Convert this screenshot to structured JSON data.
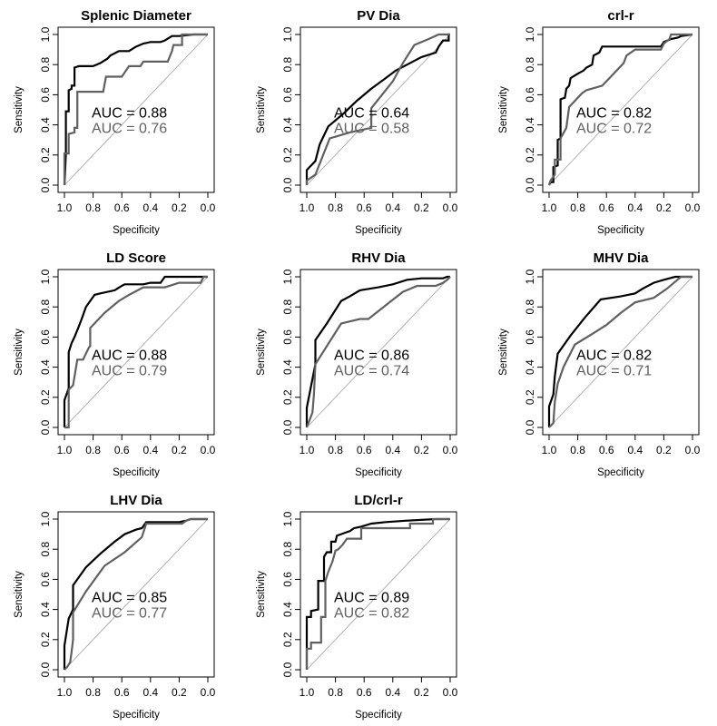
{
  "chart_data": [
    {
      "type": "line",
      "title": "Splenic Diameter",
      "xlabel": "Specificity",
      "ylabel": "Sensitivity",
      "xlim": [
        1.0,
        0.0
      ],
      "ylim": [
        0.0,
        1.0
      ],
      "xticks": [
        "1.0",
        "0.8",
        "0.6",
        "0.4",
        "0.2",
        "0.0"
      ],
      "yticks": [
        "0.0",
        "0.2",
        "0.4",
        "0.6",
        "0.8",
        "1.0"
      ],
      "diagonal": true,
      "series": [
        {
          "name": "curve-black",
          "color": "#000000",
          "auc_label": "AUC =  0.88",
          "x": [
            1.0,
            0.99,
            0.99,
            0.97,
            0.97,
            0.95,
            0.95,
            0.93,
            0.93,
            0.9,
            0.8,
            0.75,
            0.7,
            0.68,
            0.62,
            0.55,
            0.5,
            0.45,
            0.4,
            0.33,
            0.3,
            0.25,
            0.2,
            0.1,
            0.0
          ],
          "y": [
            0.0,
            0.21,
            0.49,
            0.49,
            0.63,
            0.64,
            0.66,
            0.66,
            0.78,
            0.79,
            0.79,
            0.81,
            0.84,
            0.86,
            0.89,
            0.89,
            0.92,
            0.94,
            0.95,
            0.95,
            0.96,
            0.99,
            0.99,
            1.0,
            1.0
          ]
        },
        {
          "name": "curve-gray",
          "color": "#606060",
          "auc_label": "AUC =  0.76",
          "x": [
            1.0,
            1.0,
            0.97,
            0.97,
            0.93,
            0.93,
            0.91,
            0.91,
            0.73,
            0.71,
            0.6,
            0.55,
            0.47,
            0.45,
            0.28,
            0.25,
            0.24,
            0.18,
            0.18,
            0.0
          ],
          "y": [
            0.0,
            0.21,
            0.21,
            0.34,
            0.35,
            0.38,
            0.38,
            0.62,
            0.62,
            0.72,
            0.72,
            0.79,
            0.79,
            0.82,
            0.82,
            0.89,
            0.93,
            0.93,
            1.0,
            1.0
          ]
        }
      ]
    },
    {
      "type": "line",
      "title": "PV Dia",
      "xlabel": "Specificity",
      "ylabel": "Sensitivity",
      "xlim": [
        1.0,
        0.0
      ],
      "ylim": [
        0.0,
        1.0
      ],
      "xticks": [
        "1.0",
        "0.8",
        "0.6",
        "0.4",
        "0.2",
        "0.0"
      ],
      "yticks": [
        "0.0",
        "0.2",
        "0.4",
        "0.6",
        "0.8",
        "1.0"
      ],
      "diagonal": true,
      "series": [
        {
          "name": "curve-black",
          "color": "#000000",
          "auc_label": "AUC =  0.64",
          "x": [
            1.0,
            1.0,
            0.94,
            0.91,
            0.89,
            0.85,
            0.75,
            0.65,
            0.55,
            0.45,
            0.38,
            0.3,
            0.2,
            0.1,
            0.08,
            0.05,
            0.01,
            0.01,
            0.0
          ],
          "y": [
            0.0,
            0.1,
            0.16,
            0.27,
            0.31,
            0.39,
            0.47,
            0.56,
            0.64,
            0.71,
            0.76,
            0.8,
            0.85,
            0.88,
            0.92,
            0.96,
            0.96,
            1.0,
            1.0
          ]
        },
        {
          "name": "curve-gray",
          "color": "#606060",
          "auc_label": "AUC =  0.58",
          "x": [
            1.0,
            1.0,
            0.94,
            0.84,
            0.7,
            0.55,
            0.55,
            0.4,
            0.33,
            0.25,
            0.15,
            0.08,
            0.03,
            0.0
          ],
          "y": [
            0.0,
            0.03,
            0.07,
            0.31,
            0.35,
            0.38,
            0.51,
            0.69,
            0.81,
            0.93,
            0.97,
            1.0,
            1.0,
            1.0
          ]
        }
      ]
    },
    {
      "type": "line",
      "title": "crl-r",
      "xlabel": "Specificity",
      "ylabel": "Sensitivity",
      "xlim": [
        1.0,
        0.0
      ],
      "ylim": [
        0.0,
        1.0
      ],
      "xticks": [
        "1.0",
        "0.8",
        "0.6",
        "0.4",
        "0.2",
        "0.0"
      ],
      "yticks": [
        "0.0",
        "0.2",
        "0.4",
        "0.6",
        "0.8",
        "1.0"
      ],
      "diagonal": true,
      "series": [
        {
          "name": "curve-black",
          "color": "#000000",
          "auc_label": "AUC =  0.82",
          "x": [
            1.0,
            0.99,
            0.97,
            0.97,
            0.94,
            0.94,
            0.92,
            0.92,
            0.89,
            0.88,
            0.86,
            0.85,
            0.8,
            0.76,
            0.74,
            0.7,
            0.69,
            0.65,
            0.63,
            0.22,
            0.2,
            0.15,
            0.1,
            0.08,
            0.0
          ],
          "y": [
            0.0,
            0.02,
            0.02,
            0.12,
            0.13,
            0.3,
            0.31,
            0.57,
            0.58,
            0.64,
            0.66,
            0.71,
            0.74,
            0.76,
            0.78,
            0.8,
            0.86,
            0.88,
            0.92,
            0.92,
            0.95,
            0.97,
            0.98,
            0.99,
            1.0
          ]
        },
        {
          "name": "curve-gray",
          "color": "#606060",
          "auc_label": "AUC =  0.72",
          "x": [
            1.0,
            0.99,
            0.96,
            0.96,
            0.92,
            0.92,
            0.88,
            0.86,
            0.83,
            0.77,
            0.74,
            0.63,
            0.6,
            0.55,
            0.52,
            0.48,
            0.46,
            0.4,
            0.22,
            0.2,
            0.16,
            0.15,
            0.0
          ],
          "y": [
            0.0,
            0.03,
            0.07,
            0.17,
            0.17,
            0.31,
            0.38,
            0.52,
            0.55,
            0.61,
            0.63,
            0.66,
            0.69,
            0.74,
            0.77,
            0.81,
            0.86,
            0.9,
            0.9,
            0.94,
            0.97,
            1.0,
            1.0
          ]
        }
      ]
    },
    {
      "type": "line",
      "title": "LD Score",
      "xlabel": "Specificity",
      "ylabel": "Sensitivity",
      "xlim": [
        1.0,
        0.0
      ],
      "ylim": [
        0.0,
        1.0
      ],
      "xticks": [
        "1.0",
        "0.8",
        "0.6",
        "0.4",
        "0.2",
        "0.0"
      ],
      "yticks": [
        "0.0",
        "0.2",
        "0.4",
        "0.6",
        "0.8",
        "1.0"
      ],
      "diagonal": true,
      "series": [
        {
          "name": "curve-black",
          "color": "#000000",
          "auc_label": "AUC =  0.88",
          "x": [
            1.0,
            1.0,
            0.97,
            0.97,
            0.95,
            0.93,
            0.9,
            0.88,
            0.85,
            0.82,
            0.79,
            0.75,
            0.65,
            0.6,
            0.58,
            0.45,
            0.4,
            0.33,
            0.3,
            0.0
          ],
          "y": [
            0.0,
            0.18,
            0.26,
            0.5,
            0.56,
            0.6,
            0.67,
            0.72,
            0.8,
            0.84,
            0.88,
            0.89,
            0.91,
            0.94,
            0.95,
            0.95,
            0.96,
            0.96,
            1.0,
            1.0
          ]
        },
        {
          "name": "curve-gray",
          "color": "#606060",
          "auc_label": "AUC =  0.79",
          "x": [
            1.0,
            0.97,
            0.97,
            0.94,
            0.91,
            0.87,
            0.83,
            0.82,
            0.82,
            0.72,
            0.62,
            0.55,
            0.45,
            0.3,
            0.2,
            0.05,
            0.03,
            0.0
          ],
          "y": [
            0.0,
            0.0,
            0.25,
            0.28,
            0.45,
            0.45,
            0.53,
            0.54,
            0.66,
            0.76,
            0.84,
            0.88,
            0.93,
            0.93,
            0.96,
            0.96,
            1.0,
            1.0
          ]
        }
      ]
    },
    {
      "type": "line",
      "title": "RHV Dia",
      "xlabel": "Specificity",
      "ylabel": "Sensitivity",
      "xlim": [
        1.0,
        0.0
      ],
      "ylim": [
        0.0,
        1.0
      ],
      "xticks": [
        "1.0",
        "0.8",
        "0.6",
        "0.4",
        "0.2",
        "0.0"
      ],
      "yticks": [
        "0.0",
        "0.2",
        "0.4",
        "0.6",
        "0.8",
        "1.0"
      ],
      "diagonal": true,
      "series": [
        {
          "name": "curve-black",
          "color": "#000000",
          "auc_label": "AUC =  0.86",
          "x": [
            1.0,
            1.0,
            0.94,
            0.94,
            0.86,
            0.76,
            0.7,
            0.63,
            0.5,
            0.4,
            0.3,
            0.2,
            0.05,
            0.02,
            0.0
          ],
          "y": [
            0.0,
            0.13,
            0.42,
            0.58,
            0.69,
            0.84,
            0.87,
            0.91,
            0.93,
            0.95,
            0.98,
            0.99,
            0.99,
            1.0,
            1.0
          ]
        },
        {
          "name": "curve-gray",
          "color": "#606060",
          "auc_label": "AUC =  0.74",
          "x": [
            1.0,
            0.96,
            0.95,
            0.94,
            0.76,
            0.63,
            0.57,
            0.45,
            0.33,
            0.23,
            0.1,
            0.05,
            0.02,
            0.0
          ],
          "y": [
            0.0,
            0.1,
            0.22,
            0.42,
            0.69,
            0.72,
            0.72,
            0.81,
            0.9,
            0.94,
            0.94,
            0.96,
            0.98,
            1.0
          ]
        }
      ]
    },
    {
      "type": "line",
      "title": "MHV Dia",
      "xlabel": "Specificity",
      "ylabel": "Sensitivity",
      "xlim": [
        1.0,
        0.0
      ],
      "ylim": [
        0.0,
        1.0
      ],
      "xticks": [
        "1.0",
        "0.8",
        "0.6",
        "0.4",
        "0.2",
        "0.0"
      ],
      "yticks": [
        "0.0",
        "0.2",
        "0.4",
        "0.6",
        "0.8",
        "1.0"
      ],
      "diagonal": true,
      "series": [
        {
          "name": "curve-black",
          "color": "#000000",
          "auc_label": "AUC =  0.82",
          "x": [
            1.0,
            1.0,
            0.97,
            0.96,
            0.94,
            0.85,
            0.75,
            0.64,
            0.5,
            0.4,
            0.35,
            0.27,
            0.2,
            0.12,
            0.08,
            0.0
          ],
          "y": [
            0.0,
            0.14,
            0.22,
            0.34,
            0.49,
            0.61,
            0.73,
            0.85,
            0.87,
            0.89,
            0.92,
            0.96,
            0.98,
            1.0,
            1.0,
            1.0
          ]
        },
        {
          "name": "curve-gray",
          "color": "#606060",
          "auc_label": "AUC =  0.71",
          "x": [
            1.0,
            0.97,
            0.96,
            0.94,
            0.9,
            0.82,
            0.7,
            0.6,
            0.5,
            0.4,
            0.27,
            0.18,
            0.08,
            0.0
          ],
          "y": [
            0.0,
            0.03,
            0.17,
            0.29,
            0.4,
            0.55,
            0.62,
            0.68,
            0.76,
            0.83,
            0.86,
            0.92,
            1.0,
            1.0
          ]
        }
      ]
    },
    {
      "type": "line",
      "title": "LHV Dia",
      "xlabel": "Specificity",
      "ylabel": "Sensitivity",
      "xlim": [
        1.0,
        0.0
      ],
      "ylim": [
        0.0,
        1.0
      ],
      "xticks": [
        "1.0",
        "0.8",
        "0.6",
        "0.4",
        "0.2",
        "0.0"
      ],
      "yticks": [
        "0.0",
        "0.2",
        "0.4",
        "0.6",
        "0.8",
        "1.0"
      ],
      "diagonal": true,
      "series": [
        {
          "name": "curve-black",
          "color": "#000000",
          "auc_label": "AUC =  0.85",
          "x": [
            1.0,
            1.0,
            0.97,
            0.94,
            0.94,
            0.85,
            0.75,
            0.65,
            0.58,
            0.5,
            0.46,
            0.43,
            0.2,
            0.15,
            0.12,
            0.0
          ],
          "y": [
            0.0,
            0.16,
            0.34,
            0.4,
            0.56,
            0.68,
            0.77,
            0.85,
            0.9,
            0.93,
            0.94,
            0.98,
            0.98,
            0.99,
            1.0,
            1.0
          ]
        },
        {
          "name": "curve-gray",
          "color": "#606060",
          "auc_label": "AUC =  0.77",
          "x": [
            1.0,
            0.98,
            0.96,
            0.95,
            0.94,
            0.94,
            0.85,
            0.72,
            0.58,
            0.46,
            0.43,
            0.18,
            0.15,
            0.12,
            0.0
          ],
          "y": [
            0.0,
            0.02,
            0.05,
            0.12,
            0.2,
            0.38,
            0.52,
            0.69,
            0.78,
            0.88,
            0.97,
            0.97,
            0.99,
            1.0,
            1.0
          ]
        }
      ]
    },
    {
      "type": "line",
      "title": "LD/crl-r",
      "xlabel": "Specificity",
      "ylabel": "Sensitivity",
      "xlim": [
        1.0,
        0.0
      ],
      "ylim": [
        0.0,
        1.0
      ],
      "xticks": [
        "1.0",
        "0.8",
        "0.6",
        "0.4",
        "0.2",
        "0.0"
      ],
      "yticks": [
        "0.0",
        "0.2",
        "0.4",
        "0.6",
        "0.8",
        "1.0"
      ],
      "diagonal": true,
      "series": [
        {
          "name": "curve-black",
          "color": "#000000",
          "auc_label": "AUC =  0.89",
          "x": [
            1.0,
            1.0,
            0.97,
            0.97,
            0.92,
            0.92,
            0.88,
            0.88,
            0.86,
            0.83,
            0.83,
            0.8,
            0.79,
            0.76,
            0.73,
            0.7,
            0.67,
            0.62,
            0.55,
            0.45,
            0.3,
            0.1,
            0.0
          ],
          "y": [
            0.0,
            0.35,
            0.35,
            0.39,
            0.4,
            0.59,
            0.59,
            0.75,
            0.78,
            0.78,
            0.85,
            0.85,
            0.89,
            0.9,
            0.91,
            0.92,
            0.94,
            0.95,
            0.97,
            0.98,
            0.99,
            1.0,
            1.0
          ]
        },
        {
          "name": "curve-gray",
          "color": "#606060",
          "auc_label": "AUC =  0.82",
          "x": [
            1.0,
            1.0,
            0.97,
            0.97,
            0.9,
            0.9,
            0.87,
            0.87,
            0.85,
            0.82,
            0.8,
            0.78,
            0.75,
            0.72,
            0.62,
            0.62,
            0.28,
            0.28,
            0.12,
            0.12,
            0.0
          ],
          "y": [
            0.0,
            0.14,
            0.14,
            0.18,
            0.18,
            0.35,
            0.35,
            0.59,
            0.65,
            0.72,
            0.79,
            0.8,
            0.83,
            0.87,
            0.87,
            0.94,
            0.94,
            0.97,
            0.97,
            1.0,
            1.0
          ]
        }
      ]
    }
  ]
}
